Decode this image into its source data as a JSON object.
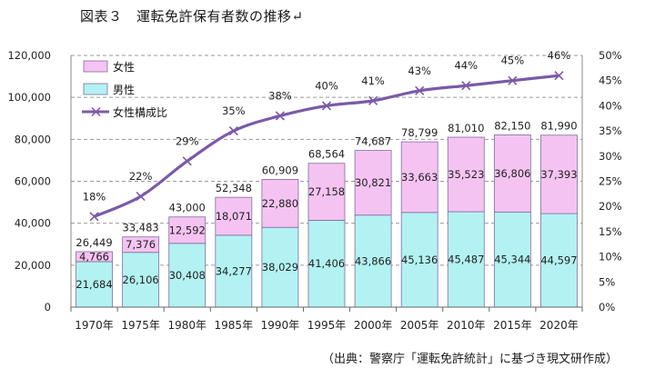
{
  "figure_title": "図表３　運転免許保有者数の推移↵",
  "source_note": "（出典：警察庁「運転免許統計」に基づき現文研作成）",
  "colors": {
    "female": "#f5c3f2",
    "male": "#b3f2f2",
    "bar_border": "#7e6e9e",
    "line": "#7a5aa8",
    "grid": "#9a9a9a"
  },
  "chart_data": {
    "type": "bar",
    "stacked": true,
    "categories": [
      "1970年",
      "1975年",
      "1980年",
      "1985年",
      "1990年",
      "1995年",
      "2000年",
      "2005年",
      "2010年",
      "2015年",
      "2020年"
    ],
    "series": [
      {
        "name": "男性",
        "values": [
          21684,
          26106,
          30408,
          34277,
          38029,
          41406,
          43866,
          45136,
          45487,
          45344,
          44597
        ]
      },
      {
        "name": "女性",
        "values": [
          4766,
          7376,
          12592,
          18071,
          22880,
          27158,
          30821,
          33663,
          35523,
          36806,
          37393
        ]
      }
    ],
    "totals": [
      26449,
      33483,
      43000,
      52348,
      60909,
      68564,
      74687,
      78799,
      81010,
      82150,
      81990
    ],
    "line_series": {
      "name": "女性構成比",
      "axis": "right",
      "values": [
        18,
        22,
        29,
        35,
        38,
        40,
        41,
        43,
        44,
        45,
        46
      ]
    },
    "ylim": [
      0,
      120000
    ],
    "y_ticks": [
      "0",
      "20,000",
      "40,000",
      "60,000",
      "80,000",
      "100,000",
      "120,000"
    ],
    "y2lim": [
      0,
      50
    ],
    "y2_ticks": [
      "0%",
      "5%",
      "10%",
      "15%",
      "20%",
      "25%",
      "30%",
      "35%",
      "40%",
      "45%",
      "50%"
    ],
    "legend": [
      "女性",
      "男性",
      "女性構成比"
    ],
    "legend_position": "top-left",
    "grid": "horizontal dashed"
  }
}
